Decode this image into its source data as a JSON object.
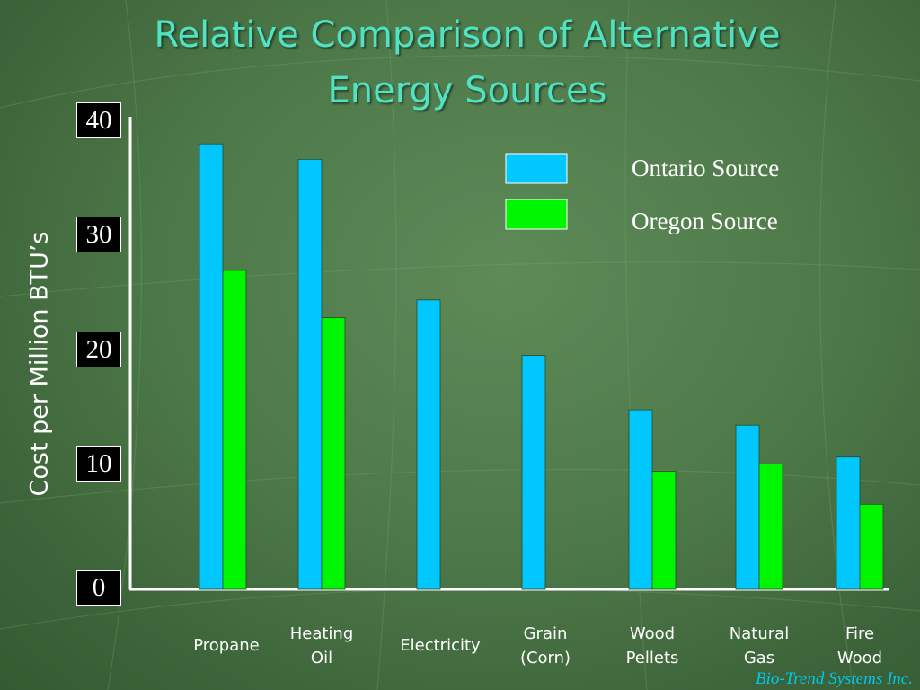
{
  "slide": {
    "title_line1": "Relative Comparison of Alternative",
    "title_line2": "Energy Sources",
    "credit": "Bio-Trend Systems Inc",
    "credit_suffix": ".",
    "background_color": "#4e7a4a"
  },
  "chart_data": {
    "type": "bar",
    "title": "Relative Comparison of Alternative Energy Sources",
    "xlabel": "",
    "ylabel": "Cost per Million BTU’s",
    "ylim": [
      0,
      40
    ],
    "yticks": [
      "0",
      "10",
      "20",
      "30",
      "40"
    ],
    "grid": false,
    "legend_position": "top-right",
    "categories": [
      [
        "Propane"
      ],
      [
        "Heating",
        "Oil"
      ],
      [
        "Electricity"
      ],
      [
        "Grain",
        "(Corn)"
      ],
      [
        "Wood",
        "Pellets"
      ],
      [
        "Natural",
        "Gas"
      ],
      [
        "Fire",
        "Wood"
      ]
    ],
    "series": [
      {
        "name": "Ontario Source",
        "color": "#00c8ff",
        "values": [
          37.7,
          36.4,
          24.5,
          19.8,
          15.2,
          13.9,
          11.2
        ]
      },
      {
        "name": "Oregon Source",
        "color": "#00f500",
        "values": [
          27.0,
          23.0,
          null,
          null,
          10.0,
          10.6,
          7.2
        ]
      }
    ]
  }
}
